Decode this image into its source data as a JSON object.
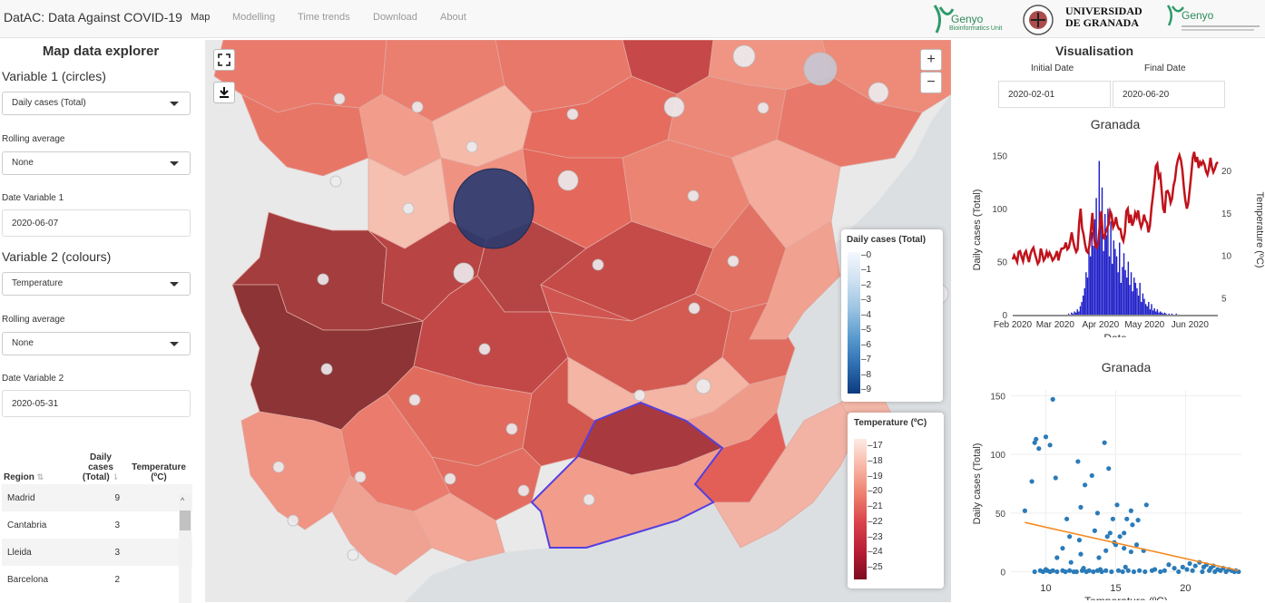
{
  "app": {
    "brand": "DatAC: Data Against COVID-19",
    "nav": [
      "Map",
      "Modelling",
      "Time trends",
      "Download",
      "About"
    ],
    "logos": {
      "genyo1": "Genyo",
      "genyo1_sub": "Bioinformatics Unit",
      "ugr": "UNIVERSIDAD DE GRANADA",
      "ugr_l1": "UNIVERSIDAD",
      "ugr_l2": "DE GRANADA",
      "genyo2": "Genyo"
    }
  },
  "sidebar": {
    "title": "Map data explorer",
    "var1_heading": "Variable 1 (circles)",
    "var1_value": "Daily cases (Total)",
    "rolling1_label": "Rolling average",
    "rolling1_value": "None",
    "date1_label": "Date Variable 1",
    "date1_value": "2020-06-07",
    "var2_heading": "Variable 2 (colours)",
    "var2_value": "Temperature",
    "rolling2_label": "Rolling average",
    "rolling2_value": "None",
    "date2_label": "Date Variable 2",
    "date2_value": "2020-05-31",
    "table": {
      "headers": [
        "Region",
        "Daily cases (Total)",
        "Temperature (ºC)"
      ],
      "rows": [
        {
          "region": "Madrid",
          "cases": "9",
          "temp": ""
        },
        {
          "region": "Cantabria",
          "cases": "3",
          "temp": ""
        },
        {
          "region": "Lleida",
          "cases": "3",
          "temp": ""
        },
        {
          "region": "Barcelona",
          "cases": "2",
          "temp": ""
        }
      ]
    }
  },
  "map": {
    "fullscreen_icon": "fullscreen-icon",
    "download_icon": "download-icon",
    "zoom_in": "+",
    "zoom_out": "−",
    "legend_cases": {
      "title": "Daily cases (Total)",
      "ticks": [
        "0",
        "1",
        "2",
        "3",
        "4",
        "5",
        "6",
        "7",
        "8",
        "9"
      ]
    },
    "legend_temp": {
      "title": "Temperature (ºC)",
      "ticks": [
        "17",
        "18",
        "19",
        "20",
        "21",
        "22",
        "23",
        "24",
        "25"
      ]
    }
  },
  "visualisation": {
    "title": "Visualisation",
    "initial_label": "Initial Date",
    "final_label": "Final Date",
    "initial_value": "2020-02-01",
    "final_value": "2020-06-20"
  },
  "colors": {
    "bars": "#1f1fc8",
    "temp_line": "#c0121b",
    "scatter": "#2b7bb9",
    "trend": "#f58a1f"
  },
  "chart_data": [
    {
      "type": "bar",
      "title": "Granada",
      "xlabel": "Date",
      "ylabel": "Daily cases (Total)",
      "y2label": "Temperature (ºC)",
      "x_ticks": [
        "Feb 2020",
        "Mar 2020",
        "Apr 2020",
        "May 2020",
        "Jun 2020"
      ],
      "y_ticks": [
        "0",
        "50",
        "100",
        "150"
      ],
      "y2_ticks": [
        "5",
        "10",
        "15",
        "20"
      ],
      "ylim": [
        0,
        160
      ],
      "y2lim": [
        3,
        23
      ],
      "x_range": [
        "2020-02-01",
        "2020-06-20"
      ],
      "series": [
        {
          "name": "Daily cases (Total)",
          "kind": "bar",
          "values": [
            0,
            0,
            0,
            0,
            0,
            0,
            0,
            0,
            0,
            0,
            0,
            0,
            0,
            0,
            0,
            0,
            0,
            0,
            0,
            0,
            0,
            0,
            0,
            0,
            0,
            0,
            0,
            0,
            0,
            0,
            0,
            0,
            0,
            0,
            0,
            0,
            0,
            0,
            1,
            0,
            2,
            1,
            3,
            2,
            5,
            3,
            8,
            12,
            18,
            25,
            40,
            35,
            60,
            55,
            78,
            65,
            90,
            110,
            70,
            145,
            85,
            120,
            60,
            95,
            75,
            100,
            55,
            88,
            48,
            70,
            62,
            55,
            40,
            68,
            30,
            45,
            58,
            42,
            35,
            50,
            28,
            40,
            22,
            35,
            30,
            25,
            18,
            30,
            12,
            20,
            15,
            10,
            8,
            12,
            5,
            10,
            4,
            6,
            3,
            5,
            2,
            3,
            2,
            1,
            2,
            1,
            0,
            1,
            0,
            1,
            0,
            0,
            1,
            0,
            0,
            0,
            0,
            0,
            0,
            0,
            0,
            0,
            0,
            0,
            0,
            0,
            0,
            0,
            0,
            0,
            0,
            0,
            0,
            0,
            0,
            0,
            0,
            0,
            0,
            0,
            0
          ]
        },
        {
          "name": "Temperature (ºC)",
          "kind": "line",
          "values": [
            9.5,
            10,
            9.6,
            9.2,
            10.4,
            10.5,
            9.8,
            9.3,
            10.2,
            10.5,
            9.8,
            9.2,
            10.1,
            10.6,
            10.9,
            10.2,
            9.6,
            9,
            9.3,
            10.8,
            10.2,
            9.4,
            9.7,
            10.4,
            9.9,
            10.3,
            9.9,
            9.4,
            9.6,
            10,
            10.5,
            9.4,
            10.2,
            10.8,
            10.8,
            10.9,
            11.5,
            10.7,
            10.9,
            11.7,
            12.7,
            11.6,
            10.9,
            10.4,
            10.7,
            13.8,
            15.5,
            13.2,
            12.5,
            11.3,
            10.5,
            10.3,
            11.2,
            13,
            15,
            12.2,
            11.1,
            10.9,
            11.6,
            13.5,
            15.2,
            12.5,
            11.9,
            12.7,
            13.2,
            13.7,
            15.2,
            14.8,
            13.3,
            13.7,
            14.5,
            13.5,
            13.1,
            13.1,
            12.1,
            11.7,
            12.7,
            15.2,
            15.5,
            13.8,
            14.8,
            13.5,
            14,
            15,
            14.5,
            15.3,
            14,
            13.3,
            13.8,
            14.8,
            14.1,
            13.8,
            12.7,
            13.5,
            15.5,
            17,
            18.5,
            20.5,
            20.8,
            19.2,
            19.5,
            17.5,
            15.5,
            15,
            17.5,
            17.6,
            17.2,
            16.2,
            16.7,
            18.2,
            18.9,
            20.5,
            21.3,
            21.8,
            21.2,
            20,
            18,
            16.5,
            15.5,
            16.2,
            17.8,
            19.5,
            21.5,
            22.2,
            21,
            21.6,
            20.3,
            21,
            20.7,
            21.1,
            20.7,
            19.9,
            19.5,
            20.2,
            21.5,
            20.4,
            19.8,
            20.2,
            20.8,
            21
          ]
        }
      ]
    },
    {
      "type": "scatter",
      "title": "Granada",
      "xlabel": "Temperature (ºC)",
      "ylabel": "Daily cases (Total)",
      "x_ticks": [
        "10",
        "15",
        "20"
      ],
      "y_ticks": [
        "0",
        "50",
        "100",
        "150"
      ],
      "xlim": [
        7.5,
        24
      ],
      "ylim": [
        -5,
        155
      ],
      "series": [
        {
          "name": "Daily cases (Total)",
          "points": [
            [
              9.2,
              110
            ],
            [
              9.3,
              113
            ],
            [
              9.5,
              105
            ],
            [
              8.5,
              52
            ],
            [
              9,
              77
            ],
            [
              10,
              115
            ],
            [
              10.3,
              108
            ],
            [
              10.5,
              147
            ],
            [
              10.7,
              80
            ],
            [
              11.5,
              45
            ],
            [
              11.7,
              30
            ],
            [
              11.2,
              20
            ],
            [
              12.3,
              94
            ],
            [
              12.5,
              55
            ],
            [
              12.4,
              27
            ],
            [
              12.8,
              74
            ],
            [
              13.3,
              82
            ],
            [
              13.7,
              50
            ],
            [
              14.2,
              110
            ],
            [
              14.3,
              18
            ],
            [
              14.4,
              30
            ],
            [
              14.6,
              33
            ],
            [
              14.5,
              88
            ],
            [
              14.8,
              45
            ],
            [
              15.1,
              57
            ],
            [
              15,
              23
            ],
            [
              15.3,
              30
            ],
            [
              15.6,
              20
            ],
            [
              15.8,
              45
            ],
            [
              16.1,
              52
            ],
            [
              16.1,
              17
            ],
            [
              16.6,
              44
            ],
            [
              17.2,
              57
            ],
            [
              17,
              18
            ],
            [
              16.5,
              23
            ],
            [
              15.6,
              33
            ],
            [
              14.9,
              25
            ],
            [
              13.8,
              12
            ],
            [
              13.5,
              35
            ],
            [
              11.8,
              8
            ],
            [
              10.8,
              12
            ],
            [
              12.5,
              15
            ],
            [
              16.2,
              40
            ],
            [
              20.3,
              7
            ],
            [
              20.7,
              5
            ],
            [
              21,
              8
            ],
            [
              21.3,
              4
            ],
            [
              21.5,
              6
            ],
            [
              21.8,
              3
            ],
            [
              22,
              5
            ],
            [
              22.3,
              2
            ],
            [
              22.7,
              3
            ],
            [
              23.1,
              2
            ],
            [
              23.6,
              1
            ],
            [
              18.8,
              6
            ],
            [
              19.2,
              3
            ],
            [
              19.8,
              4
            ],
            [
              20.1,
              2
            ],
            [
              9.6,
              1
            ],
            [
              9.8,
              0
            ],
            [
              10.1,
              1
            ],
            [
              10.3,
              0
            ],
            [
              10.5,
              1
            ],
            [
              10.8,
              0
            ],
            [
              11.2,
              1
            ],
            [
              11.4,
              0
            ],
            [
              11.7,
              1
            ],
            [
              12,
              0
            ],
            [
              12.2,
              0
            ],
            [
              12.6,
              1
            ],
            [
              12.9,
              0
            ],
            [
              13.1,
              1
            ],
            [
              13.4,
              0
            ],
            [
              13.7,
              1
            ],
            [
              14,
              0
            ],
            [
              14.3,
              1
            ],
            [
              14.7,
              0
            ],
            [
              15.2,
              1
            ],
            [
              15.5,
              0
            ],
            [
              15.9,
              1
            ],
            [
              16.3,
              0
            ],
            [
              16.7,
              1
            ],
            [
              17.1,
              0
            ],
            [
              17.6,
              1
            ],
            [
              18.2,
              0
            ],
            [
              18.5,
              1
            ],
            [
              19.5,
              0
            ],
            [
              20.5,
              1
            ],
            [
              21.2,
              0
            ],
            [
              21.7,
              1
            ],
            [
              22.1,
              0
            ],
            [
              22.5,
              1
            ],
            [
              22.9,
              0
            ],
            [
              23.3,
              1
            ],
            [
              23.5,
              0
            ],
            [
              23.8,
              0
            ],
            [
              9.2,
              0
            ],
            [
              10,
              2
            ],
            [
              12.7,
              3
            ],
            [
              13.9,
              2
            ],
            [
              15.7,
              4
            ],
            [
              17.8,
              2
            ]
          ]
        },
        {
          "name": "trend",
          "line": [
            [
              8.5,
              42
            ],
            [
              23.8,
              1
            ]
          ]
        }
      ]
    }
  ]
}
